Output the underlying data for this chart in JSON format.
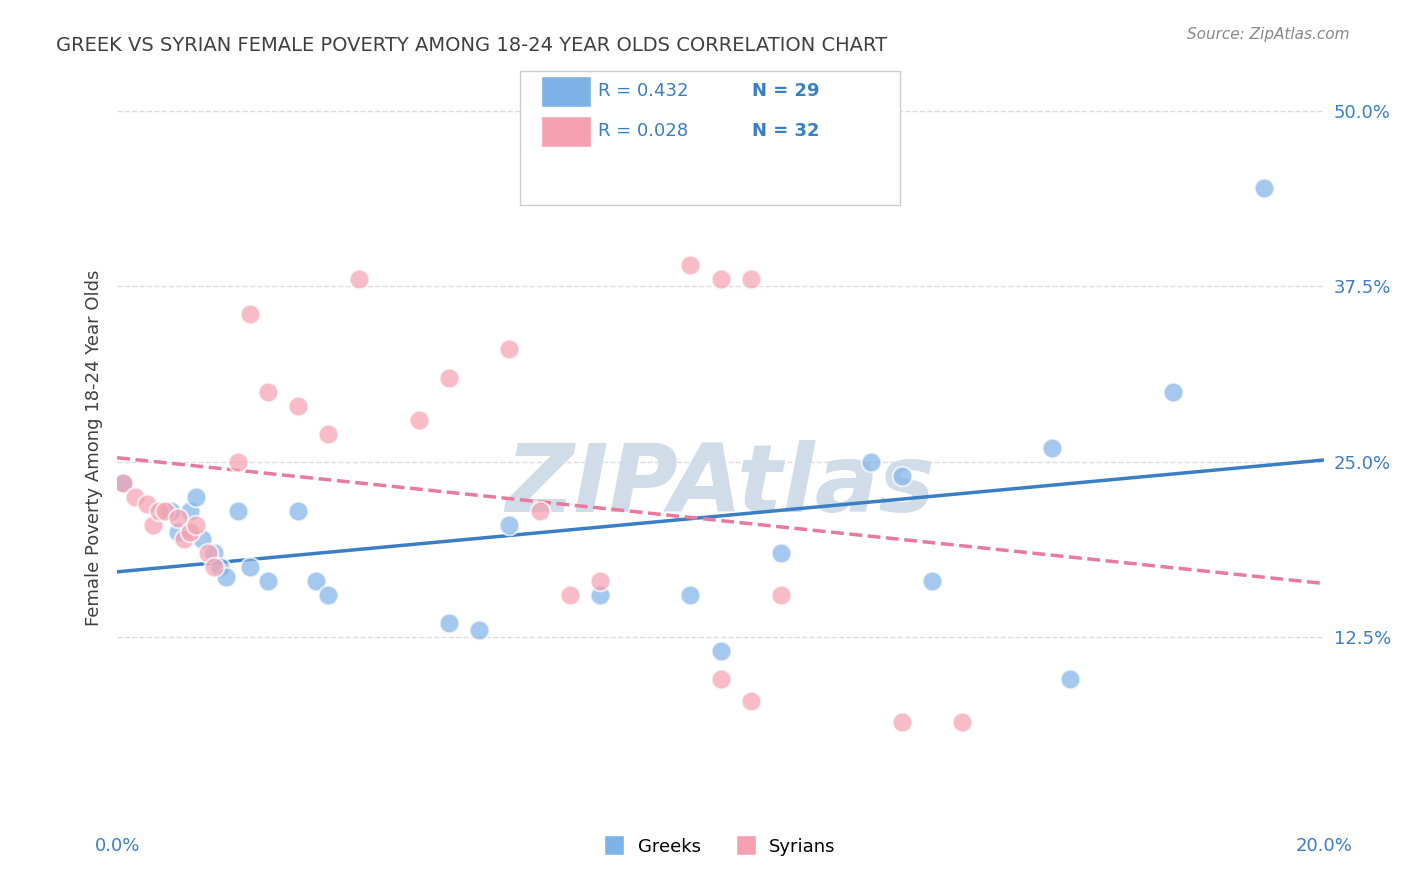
{
  "title": "GREEK VS SYRIAN FEMALE POVERTY AMONG 18-24 YEAR OLDS CORRELATION CHART",
  "source": "Source: ZipAtlas.com",
  "xlabel": "",
  "ylabel": "Female Poverty Among 18-24 Year Olds",
  "xlim": [
    0.0,
    0.2
  ],
  "ylim": [
    -0.01,
    0.53
  ],
  "xticks": [
    0.0,
    0.04,
    0.08,
    0.12,
    0.16,
    0.2
  ],
  "xticklabels": [
    "0.0%",
    "",
    "",
    "",
    "",
    "20.0%"
  ],
  "yticks": [
    0.125,
    0.25,
    0.375,
    0.5
  ],
  "yticklabels": [
    "12.5%",
    "25.0%",
    "37.5%",
    "50.0%"
  ],
  "greek_color": "#7fb3e8",
  "syrian_color": "#f4a0b0",
  "greek_line_color": "#3a7ec4",
  "syrian_line_color": "#e87a9b",
  "greek_R": 0.432,
  "greek_N": 29,
  "syrian_R": 0.028,
  "syrian_N": 32,
  "greek_x": [
    0.001,
    0.009,
    0.01,
    0.012,
    0.013,
    0.014,
    0.016,
    0.017,
    0.018,
    0.02,
    0.022,
    0.025,
    0.03,
    0.033,
    0.035,
    0.055,
    0.06,
    0.065,
    0.08,
    0.095,
    0.1,
    0.11,
    0.125,
    0.13,
    0.135,
    0.155,
    0.158,
    0.175,
    0.19
  ],
  "greek_y": [
    0.235,
    0.215,
    0.2,
    0.215,
    0.225,
    0.195,
    0.185,
    0.175,
    0.168,
    0.215,
    0.175,
    0.165,
    0.215,
    0.165,
    0.155,
    0.135,
    0.13,
    0.205,
    0.155,
    0.155,
    0.115,
    0.185,
    0.25,
    0.24,
    0.165,
    0.26,
    0.095,
    0.3,
    0.445
  ],
  "syrian_x": [
    0.001,
    0.003,
    0.005,
    0.006,
    0.007,
    0.008,
    0.01,
    0.011,
    0.012,
    0.013,
    0.015,
    0.016,
    0.02,
    0.022,
    0.025,
    0.03,
    0.035,
    0.04,
    0.05,
    0.055,
    0.065,
    0.07,
    0.075,
    0.08,
    0.095,
    0.1,
    0.105,
    0.11,
    0.13,
    0.14,
    0.1,
    0.105
  ],
  "syrian_y": [
    0.235,
    0.225,
    0.22,
    0.205,
    0.215,
    0.215,
    0.21,
    0.195,
    0.2,
    0.205,
    0.185,
    0.175,
    0.25,
    0.355,
    0.3,
    0.29,
    0.27,
    0.38,
    0.28,
    0.31,
    0.33,
    0.215,
    0.155,
    0.165,
    0.39,
    0.38,
    0.08,
    0.155,
    0.065,
    0.065,
    0.095,
    0.38
  ],
  "background_color": "#ffffff",
  "grid_color": "#dddddd",
  "title_color": "#404040",
  "axis_label_color": "#404040",
  "tick_label_color_x": "#3a7ec4",
  "tick_label_color_y": "#3a7ec4",
  "watermark_text": "ZIPAtlas",
  "watermark_color": "#d0dce8",
  "legend_R_color": "#3a7ec4",
  "legend_N_color": "#3a7ec4"
}
